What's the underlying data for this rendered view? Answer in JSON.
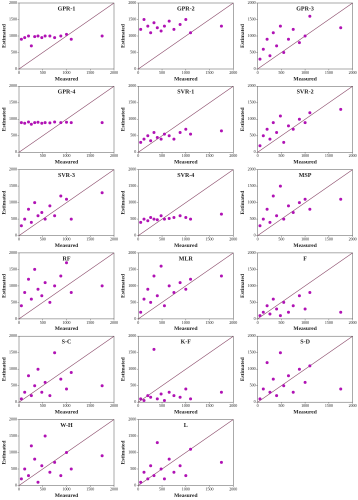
{
  "chart_data": [
    {
      "type": "scatter",
      "title": "GPR-1",
      "xlabel": "Measured",
      "ylabel": "Estimated",
      "color": "#b012b4",
      "xlim": [
        0,
        2000
      ],
      "ylim": [
        0,
        2000
      ],
      "xticks": [
        0,
        500,
        1000,
        1500,
        2000
      ],
      "yticks": [
        0,
        500,
        1000,
        1500,
        2000
      ],
      "x": [
        50,
        120,
        200,
        260,
        330,
        400,
        480,
        550,
        650,
        750,
        880,
        1000,
        1100,
        1750
      ],
      "y": [
        900,
        950,
        1000,
        700,
        980,
        1000,
        950,
        1000,
        1000,
        950,
        1000,
        1050,
        900,
        1000
      ]
    },
    {
      "type": "scatter",
      "title": "GPR-2",
      "xlabel": "Measured",
      "ylabel": "Estimated",
      "color": "#b012b4",
      "xlim": [
        0,
        2000
      ],
      "ylim": [
        0,
        2000
      ],
      "xticks": [
        0,
        500,
        1000,
        1500,
        2000
      ],
      "yticks": [
        0,
        500,
        1000,
        1500,
        2000
      ],
      "x": [
        50,
        120,
        200,
        260,
        330,
        400,
        480,
        550,
        650,
        750,
        880,
        1000,
        1100,
        1750
      ],
      "y": [
        1200,
        1500,
        1300,
        1100,
        1400,
        1250,
        1150,
        1300,
        1450,
        1200,
        1350,
        1500,
        1100,
        1300
      ]
    },
    {
      "type": "scatter",
      "title": "GPR-3",
      "xlabel": "Measured",
      "ylabel": "Estimated",
      "color": "#b012b4",
      "xlim": [
        0,
        2000
      ],
      "ylim": [
        0,
        2000
      ],
      "xticks": [
        0,
        500,
        1000,
        1500,
        2000
      ],
      "yticks": [
        0,
        500,
        1000,
        1500,
        2000
      ],
      "x": [
        50,
        120,
        200,
        260,
        330,
        400,
        480,
        550,
        650,
        750,
        880,
        1000,
        1100,
        1750
      ],
      "y": [
        300,
        600,
        900,
        400,
        1100,
        700,
        1300,
        500,
        900,
        1200,
        800,
        1000,
        1600,
        1250
      ]
    },
    {
      "type": "scatter",
      "title": "GPR-4",
      "xlabel": "Measured",
      "ylabel": "Estimated",
      "color": "#b012b4",
      "xlim": [
        0,
        2000
      ],
      "ylim": [
        0,
        2000
      ],
      "xticks": [
        0,
        500,
        1000,
        1500,
        2000
      ],
      "yticks": [
        0,
        500,
        1000,
        1500,
        2000
      ],
      "x": [
        50,
        120,
        200,
        260,
        330,
        400,
        480,
        550,
        650,
        750,
        880,
        1000,
        1100,
        1750
      ],
      "y": [
        900,
        880,
        920,
        850,
        900,
        910,
        880,
        900,
        890,
        920,
        900,
        910,
        900,
        900
      ]
    },
    {
      "type": "scatter",
      "title": "SVR-1",
      "xlabel": "Measured",
      "ylabel": "Estimated",
      "color": "#b012b4",
      "xlim": [
        0,
        2000
      ],
      "ylim": [
        0,
        2000
      ],
      "xticks": [
        0,
        500,
        1000,
        1500,
        2000
      ],
      "yticks": [
        0,
        500,
        1000,
        1500,
        2000
      ],
      "x": [
        50,
        120,
        200,
        260,
        330,
        400,
        480,
        550,
        650,
        750,
        880,
        1000,
        1100,
        1750
      ],
      "y": [
        300,
        400,
        500,
        350,
        600,
        450,
        400,
        550,
        500,
        400,
        600,
        700,
        550,
        650
      ]
    },
    {
      "type": "scatter",
      "title": "SVR-2",
      "xlabel": "Measured",
      "ylabel": "Estimated",
      "color": "#b012b4",
      "xlim": [
        0,
        2000
      ],
      "ylim": [
        0,
        2000
      ],
      "xticks": [
        0,
        500,
        1000,
        1500,
        2000
      ],
      "yticks": [
        0,
        500,
        1000,
        1500,
        2000
      ],
      "x": [
        50,
        120,
        200,
        260,
        330,
        400,
        480,
        550,
        650,
        750,
        880,
        1000,
        1100,
        1750
      ],
      "y": [
        200,
        500,
        700,
        400,
        900,
        600,
        1100,
        300,
        800,
        700,
        1000,
        900,
        1200,
        1300
      ]
    },
    {
      "type": "scatter",
      "title": "SVR-3",
      "xlabel": "Measured",
      "ylabel": "Estimated",
      "color": "#b012b4",
      "xlim": [
        0,
        2000
      ],
      "ylim": [
        0,
        2000
      ],
      "xticks": [
        0,
        500,
        1000,
        1500,
        2000
      ],
      "yticks": [
        0,
        500,
        1000,
        1500,
        2000
      ],
      "x": [
        50,
        120,
        200,
        260,
        330,
        400,
        480,
        550,
        650,
        750,
        880,
        1000,
        1100,
        1750
      ],
      "y": [
        300,
        500,
        800,
        400,
        1000,
        600,
        700,
        500,
        900,
        600,
        1200,
        1100,
        500,
        1300
      ]
    },
    {
      "type": "scatter",
      "title": "SVR-4",
      "xlabel": "Measured",
      "ylabel": "Estimated",
      "color": "#b012b4",
      "xlim": [
        0,
        2000
      ],
      "ylim": [
        0,
        2000
      ],
      "xticks": [
        0,
        500,
        1000,
        1500,
        2000
      ],
      "yticks": [
        0,
        500,
        1000,
        1500,
        2000
      ],
      "x": [
        50,
        120,
        200,
        260,
        330,
        400,
        480,
        550,
        650,
        750,
        880,
        1000,
        1100,
        1750
      ],
      "y": [
        400,
        500,
        450,
        550,
        500,
        480,
        600,
        500,
        520,
        550,
        600,
        550,
        500,
        650
      ]
    },
    {
      "type": "scatter",
      "title": "MSP",
      "xlabel": "Measured",
      "ylabel": "Estimated",
      "color": "#b012b4",
      "xlim": [
        0,
        2000
      ],
      "ylim": [
        0,
        2000
      ],
      "xticks": [
        0,
        500,
        1000,
        1500,
        2000
      ],
      "yticks": [
        0,
        500,
        1000,
        1500,
        2000
      ],
      "x": [
        50,
        120,
        200,
        260,
        330,
        400,
        480,
        550,
        650,
        750,
        880,
        1000,
        1100,
        1750
      ],
      "y": [
        300,
        500,
        800,
        400,
        1200,
        600,
        1500,
        500,
        900,
        700,
        1000,
        1100,
        800,
        1100
      ]
    },
    {
      "type": "scatter",
      "title": "RF",
      "xlabel": "Measured",
      "ylabel": "Estimated",
      "color": "#b012b4",
      "xlim": [
        0,
        2000
      ],
      "ylim": [
        0,
        2000
      ],
      "xticks": [
        0,
        500,
        1000,
        1500,
        2000
      ],
      "yticks": [
        0,
        500,
        1000,
        1500,
        2000
      ],
      "x": [
        50,
        120,
        200,
        260,
        330,
        400,
        480,
        550,
        650,
        750,
        880,
        1000,
        1100,
        1750
      ],
      "y": [
        400,
        800,
        1200,
        600,
        1500,
        900,
        700,
        1100,
        500,
        1000,
        1300,
        1700,
        800,
        1000
      ]
    },
    {
      "type": "scatter",
      "title": "MLR",
      "xlabel": "Measured",
      "ylabel": "Estimated",
      "color": "#b012b4",
      "xlim": [
        0,
        2000
      ],
      "ylim": [
        0,
        2000
      ],
      "xticks": [
        0,
        500,
        1000,
        1500,
        2000
      ],
      "yticks": [
        0,
        500,
        1000,
        1500,
        2000
      ],
      "x": [
        50,
        120,
        200,
        260,
        330,
        400,
        480,
        550,
        650,
        750,
        880,
        1000,
        1100,
        1750
      ],
      "y": [
        200,
        600,
        900,
        500,
        1300,
        700,
        1600,
        400,
        1000,
        800,
        1100,
        900,
        1200,
        1300
      ]
    },
    {
      "type": "scatter",
      "title": "F",
      "xlabel": "Measured",
      "ylabel": "Estimated",
      "color": "#b012b4",
      "xlim": [
        0,
        2000
      ],
      "ylim": [
        0,
        2000
      ],
      "xticks": [
        0,
        500,
        1000,
        1500,
        2000
      ],
      "yticks": [
        0,
        500,
        1000,
        1500,
        2000
      ],
      "x": [
        50,
        120,
        200,
        260,
        330,
        400,
        480,
        550,
        650,
        750,
        880,
        1000,
        1100,
        1750
      ],
      "y": [
        100,
        200,
        400,
        150,
        600,
        300,
        100,
        500,
        200,
        400,
        700,
        300,
        800,
        200
      ]
    },
    {
      "type": "scatter",
      "title": "S-C",
      "xlabel": "Measured",
      "ylabel": "Estimated",
      "color": "#b012b4",
      "xlim": [
        0,
        2000
      ],
      "ylim": [
        0,
        2000
      ],
      "xticks": [
        0,
        500,
        1000,
        1500,
        2000
      ],
      "yticks": [
        0,
        500,
        1000,
        1500,
        2000
      ],
      "x": [
        50,
        120,
        200,
        260,
        330,
        400,
        480,
        550,
        650,
        750,
        880,
        1000,
        1100,
        1750
      ],
      "y": [
        100,
        300,
        800,
        200,
        500,
        1000,
        300,
        600,
        200,
        1500,
        700,
        400,
        900,
        500
      ]
    },
    {
      "type": "scatter",
      "title": "K-F",
      "xlabel": "Measured",
      "ylabel": "Estimated",
      "color": "#b012b4",
      "xlim": [
        0,
        2000
      ],
      "ylim": [
        0,
        2000
      ],
      "xticks": [
        0,
        500,
        1000,
        1500,
        2000
      ],
      "yticks": [
        0,
        500,
        1000,
        1500,
        2000
      ],
      "x": [
        50,
        120,
        200,
        260,
        330,
        400,
        480,
        550,
        650,
        750,
        880,
        1000,
        1100,
        1750
      ],
      "y": [
        100,
        50,
        200,
        150,
        1600,
        100,
        250,
        50,
        300,
        200,
        150,
        400,
        100,
        300
      ]
    },
    {
      "type": "scatter",
      "title": "S-D",
      "xlabel": "Measured",
      "ylabel": "Estimated",
      "color": "#b012b4",
      "xlim": [
        0,
        2000
      ],
      "ylim": [
        0,
        2000
      ],
      "xticks": [
        0,
        500,
        1000,
        1500,
        2000
      ],
      "yticks": [
        0,
        500,
        1000,
        1500,
        2000
      ],
      "x": [
        50,
        120,
        200,
        260,
        330,
        400,
        480,
        550,
        650,
        750,
        880,
        1000,
        1100,
        1750
      ],
      "y": [
        100,
        400,
        1200,
        300,
        700,
        200,
        1500,
        500,
        800,
        300,
        1000,
        600,
        1100,
        400
      ]
    },
    {
      "type": "scatter",
      "title": "W-H",
      "xlabel": "Measured",
      "ylabel": "Estimated",
      "color": "#b012b4",
      "xlim": [
        0,
        2000
      ],
      "ylim": [
        0,
        2000
      ],
      "xticks": [
        0,
        500,
        1000,
        1500,
        2000
      ],
      "yticks": [
        0,
        500,
        1000,
        1500,
        2000
      ],
      "x": [
        50,
        120,
        200,
        260,
        330,
        400,
        480,
        550,
        650,
        750,
        880,
        1000,
        1100,
        1750
      ],
      "y": [
        200,
        500,
        300,
        1200,
        800,
        100,
        600,
        1500,
        400,
        700,
        300,
        1000,
        500,
        900
      ]
    },
    {
      "type": "scatter",
      "title": "L",
      "xlabel": "Measured",
      "ylabel": "Estimated",
      "color": "#b012b4",
      "xlim": [
        0,
        2000
      ],
      "ylim": [
        0,
        2000
      ],
      "xticks": [
        0,
        500,
        1000,
        1500,
        2000
      ],
      "yticks": [
        0,
        500,
        1000,
        1500,
        2000
      ],
      "x": [
        50,
        120,
        200,
        260,
        330,
        400,
        480,
        550,
        650,
        750,
        880,
        1000,
        1100,
        1750
      ],
      "y": [
        100,
        400,
        200,
        600,
        300,
        1300,
        500,
        200,
        800,
        400,
        600,
        300,
        1100,
        700
      ]
    }
  ]
}
